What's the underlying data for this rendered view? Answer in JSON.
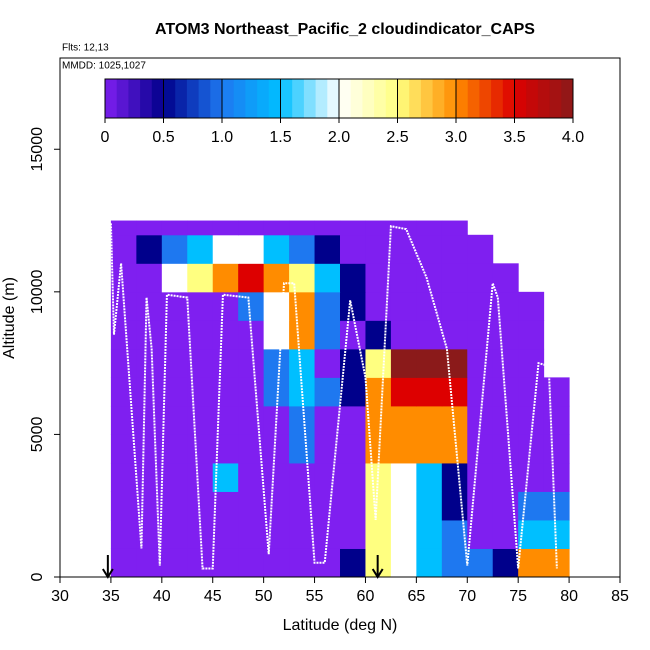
{
  "chart_data": {
    "type": "heatmap",
    "title": "ATOM3 Northeast_Pacific_2 cloudindicator_CAPS",
    "subtitle": "Flts: 12,13",
    "annotation": "MMDD: 1025,1027",
    "x_label": "Latitude (deg N)",
    "y_label": "Altitude (m)",
    "xlim": [
      30,
      85
    ],
    "ylim": [
      0,
      18200
    ],
    "xticks": [
      30,
      35,
      40,
      45,
      50,
      55,
      60,
      65,
      70,
      75,
      80,
      85
    ],
    "yticks": [
      0,
      5000,
      10000,
      15000
    ],
    "xbins": [
      35,
      37.5,
      40,
      42.5,
      45,
      47.5,
      50,
      52.5,
      55,
      57.5,
      60,
      62.5,
      65,
      67.5,
      70,
      72.5,
      75,
      77.5,
      80
    ],
    "ybins": [
      0,
      1000,
      2000,
      3000,
      4000,
      5000,
      6000,
      7000,
      8000,
      9000,
      10000,
      11000,
      12000,
      12500
    ],
    "z": [
      [
        0,
        0,
        0,
        0,
        0,
        0,
        0,
        0,
        0,
        0.5,
        2.5,
        2,
        1.5,
        1,
        1,
        0.5,
        3,
        3
      ],
      [
        0,
        0,
        0,
        0,
        0,
        0,
        0,
        0,
        0,
        0,
        2.5,
        2,
        1.5,
        1,
        0,
        0,
        1.5,
        1.5
      ],
      [
        0,
        0,
        0,
        0,
        0,
        0,
        0,
        0,
        0,
        0,
        2.5,
        2,
        1.5,
        0.5,
        0,
        0,
        1,
        1
      ],
      [
        0,
        0,
        0,
        0,
        1.5,
        0,
        0,
        0,
        0,
        0,
        2.5,
        2,
        1.5,
        0.5,
        0,
        0,
        0,
        0
      ],
      [
        0,
        0,
        0,
        0,
        0,
        0,
        0,
        1,
        0,
        0,
        3,
        3,
        3,
        3,
        0,
        0,
        0,
        0
      ],
      [
        0,
        0,
        0,
        0,
        0,
        0,
        0,
        1,
        0,
        0,
        3,
        3,
        3,
        3,
        0,
        0,
        0,
        0
      ],
      [
        0,
        0,
        0,
        0,
        0,
        0,
        1,
        1.5,
        1,
        0.5,
        3,
        3.5,
        3.5,
        3.5,
        0,
        0,
        0,
        0
      ],
      [
        0,
        0,
        0,
        0,
        0,
        0,
        1,
        1.5,
        0,
        0.5,
        2.5,
        4,
        4,
        4,
        0,
        0,
        0,
        null
      ],
      [
        0,
        0,
        0,
        0,
        0,
        0,
        2,
        3,
        1,
        0,
        0.5,
        0,
        0,
        0,
        0,
        0,
        0,
        null
      ],
      [
        0,
        0,
        0,
        0,
        0,
        1,
        2,
        3,
        1,
        0.5,
        0,
        0,
        0,
        0,
        0,
        0,
        0,
        null
      ],
      [
        0,
        0,
        2,
        2.5,
        3,
        3.5,
        3,
        2.5,
        1.5,
        0.5,
        0,
        0,
        0,
        0,
        0,
        0,
        null,
        null
      ],
      [
        0,
        0.5,
        1,
        1.5,
        2,
        2,
        1.5,
        1,
        0.5,
        0,
        0,
        0,
        0,
        0,
        0,
        null,
        null,
        null
      ],
      [
        0,
        0,
        0,
        0,
        0,
        0,
        0,
        0,
        0,
        0,
        0,
        0,
        0,
        0,
        null,
        null,
        null,
        null
      ]
    ],
    "clim": [
      0,
      4
    ],
    "cticks": [
      0,
      {
        "value": 0.5,
        "label": "0.5"
      },
      {
        "value": 1,
        "label": "1.0"
      },
      {
        "value": 1.5,
        "label": "1.5"
      },
      {
        "value": 2,
        "label": "2.0"
      },
      {
        "value": 2.5,
        "label": "2.5"
      },
      {
        "value": 3,
        "label": "3.0"
      },
      {
        "value": 3.5,
        "label": "3.5"
      },
      {
        "value": 4,
        "label": "4.0"
      }
    ],
    "colors": [
      "#7f1ff0",
      "#00008b",
      "#1e78f0",
      "#00bfff",
      "#ffffff",
      "#ffff80",
      "#ff8c00",
      "#dd0000",
      "#8b1a1a"
    ],
    "track": {
      "color": "#ffffff",
      "x": [
        35,
        35.3,
        36,
        38,
        38.5,
        39,
        39.8,
        40.5,
        42.5,
        44,
        45,
        46,
        48.5,
        50.5,
        52,
        53,
        55,
        56,
        58.5,
        60,
        61,
        62.5,
        64,
        66,
        68,
        70,
        72.5,
        73,
        75,
        77,
        78,
        78.8
      ],
      "y": [
        12400,
        8500,
        11000,
        1000,
        9800,
        8000,
        400,
        9900,
        9800,
        300,
        300,
        9900,
        9800,
        800,
        10300,
        10300,
        500,
        500,
        9700,
        7000,
        2000,
        12300,
        12200,
        10500,
        8000,
        400,
        10300,
        9800,
        300,
        7500,
        7400,
        300
      ]
    },
    "arrows": [
      34.7,
      61.2
    ]
  }
}
